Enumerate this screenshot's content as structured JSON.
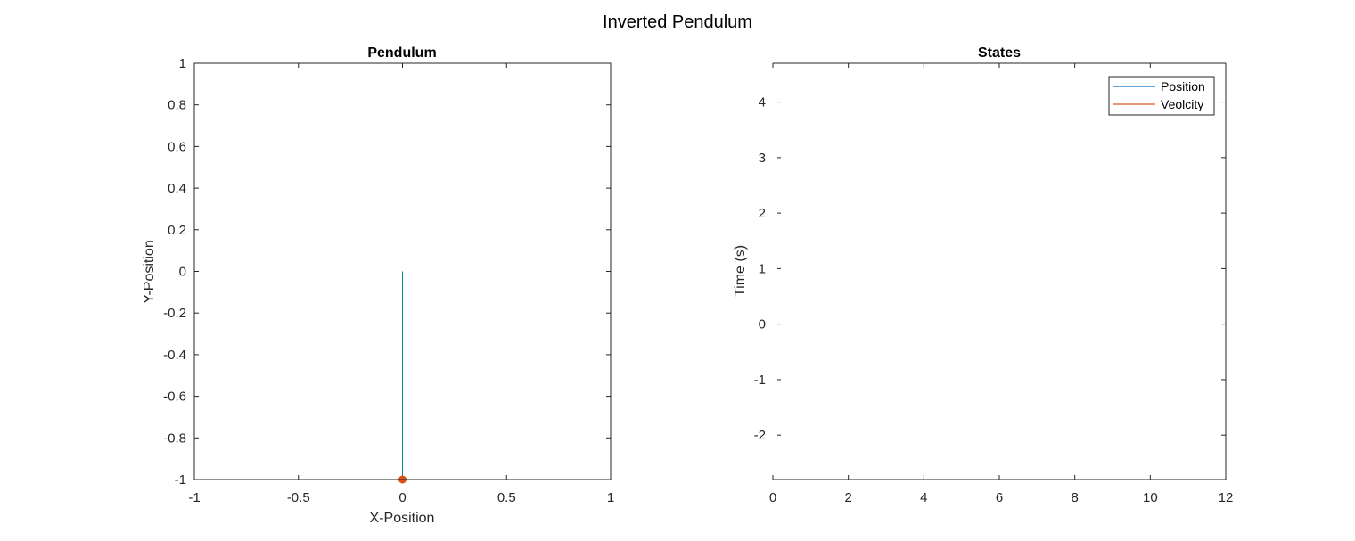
{
  "figure": {
    "title": "Inverted Pendulum"
  },
  "colors": {
    "pendulum_rod": "#0e8c7f",
    "pendulum_mass": "#d95319",
    "position": "#0072bd",
    "velocity": "#d95319",
    "axis": "#262626"
  },
  "chart_data": [
    {
      "type": "line",
      "title": "Pendulum",
      "xlabel": "X-Position",
      "ylabel": "Y-Position",
      "xlim": [
        -1,
        1
      ],
      "ylim": [
        -1,
        1
      ],
      "x_ticks": [
        -1,
        -0.5,
        0,
        0.5,
        1
      ],
      "y_ticks": [
        -1,
        -0.8,
        -0.6,
        -0.4,
        -0.2,
        0,
        0.2,
        0.4,
        0.6,
        0.8,
        1
      ],
      "grid": false,
      "rod": {
        "x": [
          0,
          0
        ],
        "y": [
          -1,
          0
        ]
      },
      "mass": {
        "x": 0,
        "y": -1
      }
    },
    {
      "type": "line",
      "title": "States",
      "xlabel": "",
      "ylabel": "Time (s)",
      "xlim": [
        0,
        12
      ],
      "ylim": [
        -2.8,
        4.7
      ],
      "x_ticks": [
        0,
        2,
        4,
        6,
        8,
        10,
        12
      ],
      "y_ticks": [
        -2,
        -1,
        0,
        1,
        2,
        3,
        4
      ],
      "grid": false,
      "legend": "top-right",
      "series": [
        {
          "name": "Position",
          "x": [],
          "values": []
        },
        {
          "name": "Veolcity",
          "x": [],
          "values": []
        }
      ]
    }
  ]
}
